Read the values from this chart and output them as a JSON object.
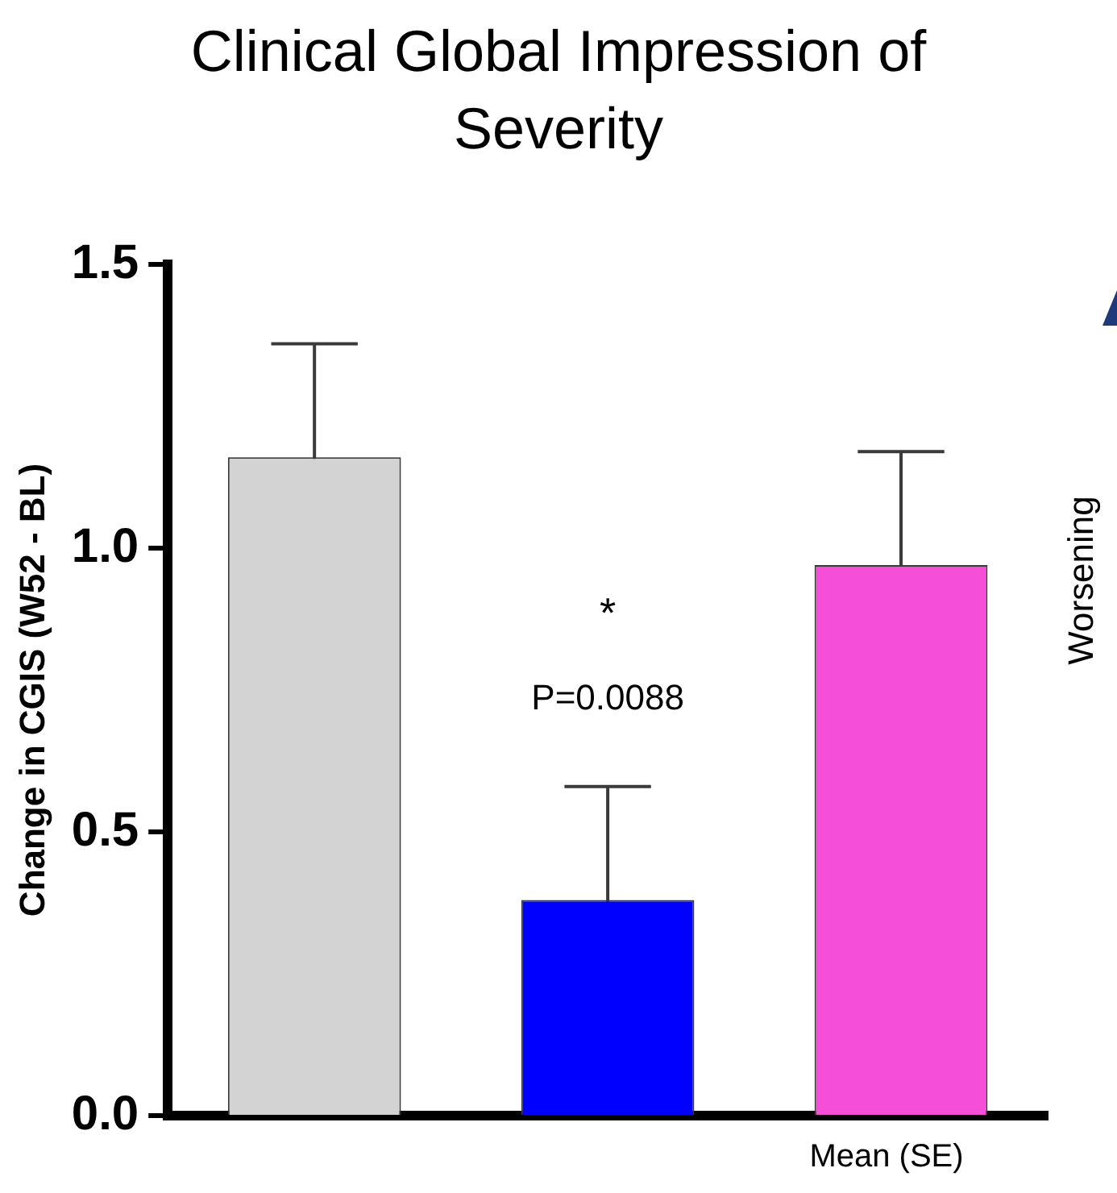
{
  "chart_data": {
    "type": "bar",
    "title": "Clinical Global Impression of Severity",
    "ylabel": "Change in CGIS (W52 - BL)",
    "categories": [
      null,
      null,
      null
    ],
    "values": [
      1.16,
      0.38,
      0.97
    ],
    "colors": [
      "#d3d3d3",
      "#0000ff",
      "#f54fd8"
    ],
    "errors": [
      0.2,
      0.2,
      0.2
    ],
    "ylim": [
      0,
      1.5
    ],
    "yticks": [
      {
        "value": 0,
        "label": "0.0"
      },
      {
        "value": 0.5,
        "label": "0.5"
      },
      {
        "value": 1,
        "label": "1.0"
      },
      {
        "value": 1.5,
        "label": "1.5"
      }
    ],
    "grid": false,
    "annotations": [
      "*",
      "P=0.0088",
      "Worsening",
      "Mean (SE)"
    ]
  }
}
